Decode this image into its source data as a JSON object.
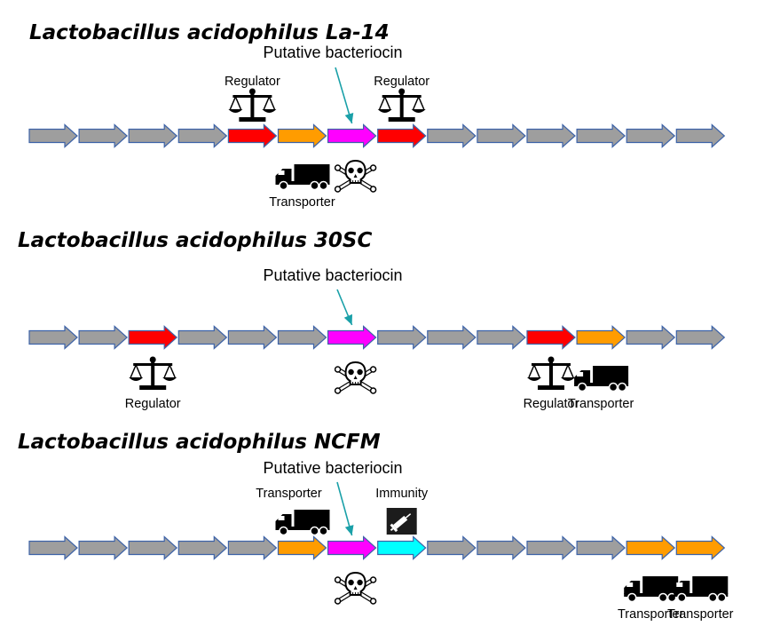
{
  "colors": {
    "gray": "#9e9e9e",
    "red": "#ff0000",
    "orange": "#ff9c00",
    "magenta": "#ff00ff",
    "cyan": "#00ffff",
    "outline": "#3d63a8",
    "pointer": "#1aa0a8"
  },
  "legend": {
    "regulator": "Regulator",
    "transporter": "Transporter",
    "immunity": "Immunity",
    "bacteriocin": "Putative bacteriocin"
  },
  "strains": [
    {
      "title": "Lactobacillus acidophilus La-14",
      "genes": [
        "gray",
        "gray",
        "gray",
        "gray",
        "red",
        "orange",
        "magenta",
        "red",
        "gray",
        "gray",
        "gray",
        "gray",
        "gray",
        "gray"
      ],
      "bacteriocin_index": 6,
      "annotations": [
        {
          "type": "regulator",
          "gene": 4,
          "pos": "above",
          "label": "Regulator",
          "label_pos": "top"
        },
        {
          "type": "regulator",
          "gene": 7,
          "pos": "above",
          "label": "Regulator",
          "label_pos": "top"
        },
        {
          "type": "transporter",
          "gene": 5,
          "pos": "below",
          "label": "Transporter",
          "label_pos": "bottom"
        },
        {
          "type": "skull",
          "gene": 6,
          "pos": "below"
        }
      ]
    },
    {
      "title": "Lactobacillus acidophilus 30SC",
      "genes": [
        "gray",
        "gray",
        "red",
        "gray",
        "gray",
        "gray",
        "magenta",
        "gray",
        "gray",
        "gray",
        "red",
        "orange",
        "gray",
        "gray"
      ],
      "bacteriocin_index": 6,
      "annotations": [
        {
          "type": "regulator",
          "gene": 2,
          "pos": "below",
          "label": "Regulator",
          "label_pos": "bottom"
        },
        {
          "type": "skull",
          "gene": 6,
          "pos": "below"
        },
        {
          "type": "regulator",
          "gene": 10,
          "pos": "below",
          "label": "Regulator",
          "label_pos": "bottom"
        },
        {
          "type": "transporter",
          "gene": 11,
          "pos": "below",
          "label": "Transporter",
          "label_pos": "bottom"
        }
      ]
    },
    {
      "title": "Lactobacillus acidophilus NCFM",
      "genes": [
        "gray",
        "gray",
        "gray",
        "gray",
        "gray",
        "orange",
        "magenta",
        "cyan",
        "gray",
        "gray",
        "gray",
        "gray",
        "orange",
        "orange"
      ],
      "bacteriocin_index": 6,
      "annotations": [
        {
          "type": "transporter",
          "gene": 5,
          "pos": "above",
          "label": "Transporter",
          "label_pos": "top"
        },
        {
          "type": "immunity",
          "gene": 7,
          "pos": "above",
          "label": "Immunity",
          "label_pos": "top"
        },
        {
          "type": "skull",
          "gene": 6,
          "pos": "below"
        },
        {
          "type": "transporter",
          "gene": 12,
          "pos": "below",
          "label": "Transporter",
          "label_pos": "bottom"
        },
        {
          "type": "transporter",
          "gene": 13,
          "pos": "below",
          "label": "Transporter",
          "label_pos": "bottom"
        }
      ]
    }
  ]
}
